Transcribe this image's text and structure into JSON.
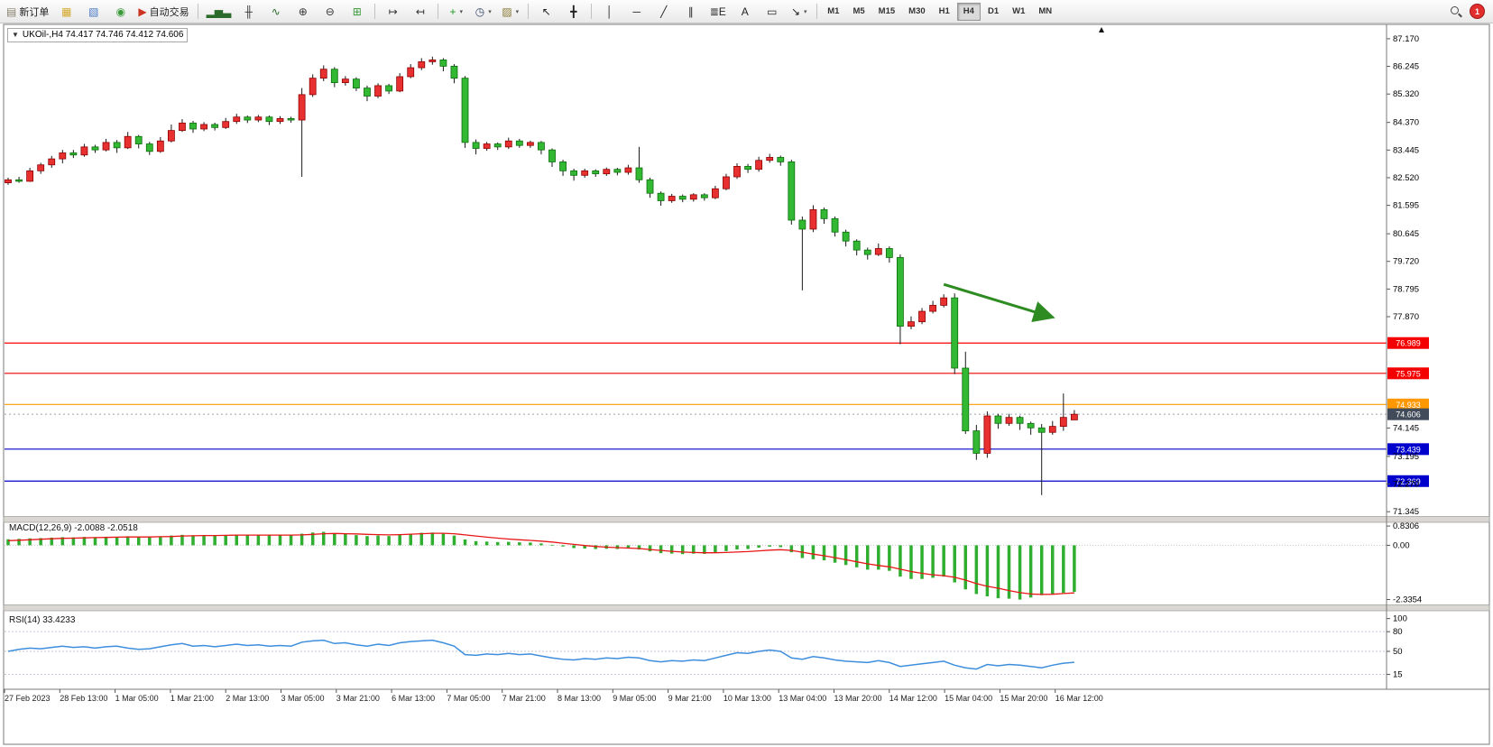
{
  "toolbar": {
    "buttons": [
      {
        "name": "new-order-button",
        "icon_name": "new-order-icon",
        "icon": "▤",
        "color": "#8a8270",
        "label": "新订单"
      },
      {
        "name": "profiles-button",
        "icon_name": "profiles-icon",
        "icon": "▦",
        "color": "#d4a92e"
      },
      {
        "name": "charts-button",
        "icon_name": "charts-icon",
        "icon": "▧",
        "color": "#4878c8"
      },
      {
        "name": "refresh-button",
        "icon_name": "refresh-icon",
        "icon": "◉",
        "color": "#3a9a3a"
      },
      {
        "name": "auto-trading-button",
        "icon_name": "auto-trading-icon",
        "icon": "▶",
        "color": "#cc3322",
        "label": "自动交易"
      },
      {
        "sep": true
      },
      {
        "name": "bar-chart-button",
        "icon_name": "bar-chart-icon",
        "icon": "▂▅▃",
        "color": "#2a6a2a"
      },
      {
        "name": "candlestick-button",
        "icon_name": "candlestick-icon",
        "icon": "╫",
        "color": "#333333"
      },
      {
        "name": "line-chart-button",
        "icon_name": "line-chart-icon",
        "icon": "∿",
        "color": "#2a6a2a"
      },
      {
        "name": "zoom-in-button",
        "icon_name": "zoom-in-icon",
        "icon": "⊕",
        "color": "#333333"
      },
      {
        "name": "zoom-out-button",
        "icon_name": "zoom-out-icon",
        "icon": "⊖",
        "color": "#333333"
      },
      {
        "name": "tile-windows-button",
        "icon_name": "tile-windows-icon",
        "icon": "⊞",
        "color": "#3a9a3a"
      },
      {
        "sep": true
      },
      {
        "name": "auto-scroll-button",
        "icon_name": "auto-scroll-icon",
        "icon": "↦",
        "color": "#333333"
      },
      {
        "name": "chart-shift-button",
        "icon_name": "chart-shift-icon",
        "icon": "↤",
        "color": "#333333"
      },
      {
        "sep": true
      },
      {
        "name": "indicators-button",
        "icon_name": "indicators-icon",
        "icon": "+",
        "color": "#1f9a1f",
        "chevron": true
      },
      {
        "name": "periods-button",
        "icon_name": "periods-icon",
        "icon": "◷",
        "color": "#334466",
        "chevron": true
      },
      {
        "name": "templates-button",
        "icon_name": "templates-icon",
        "icon": "▨",
        "color": "#887733",
        "chevron": true
      },
      {
        "sep": true
      },
      {
        "name": "cursor-button",
        "icon_name": "cursor-icon",
        "icon": "↖",
        "color": "#222222"
      },
      {
        "name": "crosshair-button",
        "icon_name": "crosshair-icon",
        "icon": "╋",
        "color": "#222222"
      },
      {
        "sep": true
      },
      {
        "name": "vertical-line-button",
        "icon_name": "vertical-line-icon",
        "icon": "│",
        "color": "#222222"
      },
      {
        "name": "horizontal-line-button",
        "icon_name": "horizontal-line-icon",
        "icon": "─",
        "color": "#222222"
      },
      {
        "name": "trendline-button",
        "icon_name": "trendline-icon",
        "icon": "╱",
        "color": "#222222"
      },
      {
        "name": "channel-button",
        "icon_name": "channel-icon",
        "icon": "∥",
        "color": "#222222"
      },
      {
        "name": "fibonacci-button",
        "icon_name": "fibonacci-icon",
        "icon": "≣E",
        "color": "#222222"
      },
      {
        "name": "text-button",
        "icon_name": "text-icon",
        "icon": "A",
        "color": "#222222"
      },
      {
        "name": "label-button",
        "icon_name": "label-icon",
        "icon": "▭",
        "color": "#222222"
      },
      {
        "name": "shapes-button",
        "icon_name": "arrows-icon",
        "icon": "↘",
        "color": "#222222",
        "chevron": true
      },
      {
        "sep": true
      }
    ],
    "timeframes": [
      "M1",
      "M5",
      "M15",
      "M30",
      "H1",
      "H4",
      "D1",
      "W1",
      "MN"
    ],
    "active_timeframe": "H4",
    "notification_count": "1",
    "collapse_icon": "▼"
  },
  "chart": {
    "symbol_info": "UKOil-,H4 74.417 74.746 74.412 74.606",
    "price_axis_ticks": [
      "87.170",
      "86.245",
      "85.320",
      "84.370",
      "83.445",
      "82.520",
      "81.595",
      "80.645",
      "79.720",
      "78.795",
      "77.870",
      "74.145",
      "73.195",
      "72.270",
      "71.345"
    ],
    "levels": [
      {
        "label": "76.989",
        "value": 76.989,
        "color": "#f40000"
      },
      {
        "label": "75.975",
        "value": 75.975,
        "color": "#f40000"
      },
      {
        "label": "74.933",
        "value": 74.933,
        "color": "#ff9800"
      },
      {
        "label": "73.439",
        "value": 73.439,
        "color": "#0000cc"
      },
      {
        "label": "72.369",
        "value": 72.369,
        "color": "#0000cc"
      }
    ],
    "current_price": {
      "label": "74.606",
      "value": 74.606,
      "color": "#414b59"
    },
    "trend_arrow": {
      "from_bar": 86,
      "from_price": 78.95,
      "to_bar": 96,
      "to_price": 77.85,
      "color": "#2e8b22",
      "width": 3
    }
  },
  "chart_data": {
    "type": "candlestick",
    "symbol": "UKOil-",
    "timeframe": "H4",
    "price_range": [
      71.2,
      87.56
    ],
    "up_color_convention": "red-up-green-down",
    "x_labels": [
      "27 Feb 2023",
      "28 Feb 13:00",
      "1 Mar 05:00",
      "1 Mar 21:00",
      "2 Mar 13:00",
      "3 Mar 05:00",
      "3 Mar 21:00",
      "6 Mar 13:00",
      "7 Mar 05:00",
      "7 Mar 21:00",
      "8 Mar 13:00",
      "9 Mar 05:00",
      "9 Mar 21:00",
      "10 Mar 13:00",
      "13 Mar 04:00",
      "13 Mar 20:00",
      "14 Mar 12:00",
      "15 Mar 04:00",
      "15 Mar 20:00",
      "16 Mar 12:00"
    ],
    "candles": [
      [
        82.35,
        82.52,
        82.28,
        82.45
      ],
      [
        82.45,
        82.55,
        82.35,
        82.4
      ],
      [
        82.4,
        82.85,
        82.38,
        82.75
      ],
      [
        82.75,
        83.02,
        82.65,
        82.95
      ],
      [
        82.95,
        83.25,
        82.85,
        83.15
      ],
      [
        83.15,
        83.45,
        83.0,
        83.35
      ],
      [
        83.35,
        83.45,
        83.18,
        83.28
      ],
      [
        83.28,
        83.65,
        83.22,
        83.55
      ],
      [
        83.55,
        83.62,
        83.35,
        83.45
      ],
      [
        83.45,
        83.82,
        83.4,
        83.7
      ],
      [
        83.7,
        83.78,
        83.35,
        83.52
      ],
      [
        83.52,
        84.05,
        83.48,
        83.9
      ],
      [
        83.9,
        83.95,
        83.5,
        83.65
      ],
      [
        83.65,
        83.72,
        83.28,
        83.4
      ],
      [
        83.4,
        83.88,
        83.35,
        83.75
      ],
      [
        83.75,
        84.3,
        83.7,
        84.1
      ],
      [
        84.1,
        84.48,
        84.05,
        84.35
      ],
      [
        84.35,
        84.42,
        84.02,
        84.15
      ],
      [
        84.15,
        84.38,
        84.08,
        84.3
      ],
      [
        84.3,
        84.36,
        84.1,
        84.2
      ],
      [
        84.2,
        84.52,
        84.15,
        84.4
      ],
      [
        84.4,
        84.66,
        84.32,
        84.55
      ],
      [
        84.55,
        84.6,
        84.35,
        84.45
      ],
      [
        84.45,
        84.62,
        84.38,
        84.55
      ],
      [
        84.55,
        84.6,
        84.28,
        84.4
      ],
      [
        84.4,
        84.58,
        84.32,
        84.5
      ],
      [
        84.5,
        84.56,
        84.36,
        84.45
      ],
      [
        84.45,
        85.52,
        82.55,
        85.3
      ],
      [
        85.3,
        85.98,
        85.22,
        85.85
      ],
      [
        85.85,
        86.28,
        85.75,
        86.15
      ],
      [
        86.15,
        86.22,
        85.55,
        85.7
      ],
      [
        85.7,
        85.92,
        85.6,
        85.82
      ],
      [
        85.82,
        85.88,
        85.42,
        85.52
      ],
      [
        85.52,
        85.6,
        85.08,
        85.25
      ],
      [
        85.25,
        85.68,
        85.18,
        85.6
      ],
      [
        85.6,
        85.66,
        85.32,
        85.42
      ],
      [
        85.42,
        86.02,
        85.38,
        85.9
      ],
      [
        85.9,
        86.32,
        85.85,
        86.2
      ],
      [
        86.2,
        86.52,
        86.12,
        86.4
      ],
      [
        86.4,
        86.57,
        86.3,
        86.46
      ],
      [
        86.46,
        86.52,
        86.08,
        86.25
      ],
      [
        86.25,
        86.32,
        85.68,
        85.85
      ],
      [
        85.85,
        85.92,
        83.52,
        83.7
      ],
      [
        83.7,
        83.8,
        83.3,
        83.5
      ],
      [
        83.5,
        83.72,
        83.42,
        83.65
      ],
      [
        83.65,
        83.7,
        83.45,
        83.55
      ],
      [
        83.55,
        83.86,
        83.48,
        83.75
      ],
      [
        83.75,
        83.82,
        83.52,
        83.6
      ],
      [
        83.6,
        83.76,
        83.52,
        83.7
      ],
      [
        83.7,
        83.75,
        83.3,
        83.45
      ],
      [
        83.45,
        83.5,
        82.88,
        83.05
      ],
      [
        83.05,
        83.12,
        82.58,
        82.75
      ],
      [
        82.75,
        82.82,
        82.42,
        82.6
      ],
      [
        82.6,
        82.82,
        82.52,
        82.75
      ],
      [
        82.75,
        82.8,
        82.55,
        82.65
      ],
      [
        82.65,
        82.86,
        82.58,
        82.8
      ],
      [
        82.8,
        82.85,
        82.6,
        82.7
      ],
      [
        82.7,
        82.95,
        82.62,
        82.85
      ],
      [
        82.85,
        83.55,
        82.35,
        82.45
      ],
      [
        82.45,
        82.52,
        81.85,
        82.0
      ],
      [
        82.0,
        82.06,
        81.58,
        81.75
      ],
      [
        81.75,
        81.98,
        81.68,
        81.9
      ],
      [
        81.9,
        81.96,
        81.7,
        81.8
      ],
      [
        81.8,
        82.0,
        81.72,
        81.95
      ],
      [
        81.95,
        82.0,
        81.75,
        81.85
      ],
      [
        81.85,
        82.25,
        81.8,
        82.15
      ],
      [
        82.15,
        82.65,
        82.1,
        82.55
      ],
      [
        82.55,
        83.0,
        82.48,
        82.9
      ],
      [
        82.9,
        82.98,
        82.68,
        82.8
      ],
      [
        82.8,
        83.22,
        82.72,
        83.1
      ],
      [
        83.1,
        83.32,
        83.02,
        83.2
      ],
      [
        83.2,
        83.26,
        82.92,
        83.05
      ],
      [
        83.05,
        83.12,
        80.95,
        81.1
      ],
      [
        81.1,
        81.22,
        78.75,
        80.8
      ],
      [
        80.8,
        81.6,
        80.7,
        81.45
      ],
      [
        81.45,
        81.52,
        80.98,
        81.15
      ],
      [
        81.15,
        81.22,
        80.55,
        80.7
      ],
      [
        80.7,
        80.78,
        80.22,
        80.4
      ],
      [
        80.4,
        80.46,
        79.92,
        80.1
      ],
      [
        80.1,
        80.18,
        79.78,
        79.95
      ],
      [
        79.95,
        80.32,
        79.9,
        80.15
      ],
      [
        80.15,
        80.22,
        79.68,
        79.85
      ],
      [
        79.85,
        79.95,
        76.95,
        77.55
      ],
      [
        77.55,
        77.88,
        77.45,
        77.7
      ],
      [
        77.7,
        78.16,
        77.62,
        78.05
      ],
      [
        78.05,
        78.4,
        77.98,
        78.25
      ],
      [
        78.25,
        78.62,
        78.18,
        78.5
      ],
      [
        78.5,
        78.65,
        75.95,
        76.15
      ],
      [
        76.15,
        76.7,
        73.95,
        74.05
      ],
      [
        74.05,
        74.25,
        73.08,
        73.3
      ],
      [
        73.3,
        74.7,
        73.15,
        74.55
      ],
      [
        74.55,
        74.62,
        74.12,
        74.3
      ],
      [
        74.3,
        74.62,
        74.22,
        74.5
      ],
      [
        74.5,
        74.56,
        74.08,
        74.3
      ],
      [
        74.3,
        74.36,
        73.92,
        74.15
      ],
      [
        74.15,
        74.28,
        71.9,
        74.0
      ],
      [
        74.0,
        74.38,
        73.92,
        74.2
      ],
      [
        74.2,
        75.3,
        74.05,
        74.5
      ],
      [
        74.417,
        74.746,
        74.412,
        74.606
      ]
    ]
  },
  "macd": {
    "label": "MACD(12,26,9) -2.0088 -2.0518",
    "axis_ticks": [
      {
        "label": "0.8306",
        "value": 0.8306
      },
      {
        "label": "0.00",
        "value": 0
      },
      {
        "label": "-2.3354",
        "value": -2.3354
      }
    ],
    "range": [
      -2.55,
      0.95
    ],
    "colors": {
      "histogram": "#2fae2f",
      "signal": "#e81717"
    },
    "histogram": [
      0.26,
      0.28,
      0.3,
      0.31,
      0.33,
      0.35,
      0.34,
      0.36,
      0.35,
      0.37,
      0.36,
      0.39,
      0.37,
      0.35,
      0.38,
      0.42,
      0.45,
      0.43,
      0.44,
      0.42,
      0.44,
      0.46,
      0.44,
      0.45,
      0.43,
      0.44,
      0.43,
      0.5,
      0.55,
      0.58,
      0.52,
      0.48,
      0.44,
      0.4,
      0.42,
      0.4,
      0.45,
      0.5,
      0.54,
      0.55,
      0.5,
      0.42,
      0.25,
      0.18,
      0.16,
      0.14,
      0.15,
      0.13,
      0.12,
      0.08,
      0.02,
      -0.05,
      -0.12,
      -0.14,
      -0.16,
      -0.15,
      -0.16,
      -0.14,
      -0.18,
      -0.26,
      -0.34,
      -0.36,
      -0.38,
      -0.36,
      -0.37,
      -0.32,
      -0.25,
      -0.18,
      -0.16,
      -0.1,
      -0.06,
      -0.08,
      -0.3,
      -0.55,
      -0.6,
      -0.65,
      -0.75,
      -0.85,
      -0.95,
      -1.05,
      -1.05,
      -1.1,
      -1.35,
      -1.45,
      -1.45,
      -1.4,
      -1.35,
      -1.6,
      -1.9,
      -2.1,
      -2.2,
      -2.28,
      -2.3,
      -2.34,
      -2.25,
      -2.15,
      -2.1,
      -2.05,
      -2.0088
    ],
    "signal": [
      0.2,
      0.22,
      0.24,
      0.26,
      0.28,
      0.3,
      0.31,
      0.32,
      0.33,
      0.34,
      0.35,
      0.36,
      0.36,
      0.36,
      0.37,
      0.38,
      0.4,
      0.41,
      0.42,
      0.42,
      0.43,
      0.44,
      0.44,
      0.44,
      0.44,
      0.44,
      0.44,
      0.45,
      0.47,
      0.5,
      0.51,
      0.5,
      0.49,
      0.47,
      0.46,
      0.45,
      0.46,
      0.48,
      0.5,
      0.52,
      0.52,
      0.5,
      0.45,
      0.4,
      0.35,
      0.31,
      0.27,
      0.24,
      0.21,
      0.18,
      0.14,
      0.09,
      0.04,
      -0.01,
      -0.05,
      -0.08,
      -0.1,
      -0.12,
      -0.14,
      -0.18,
      -0.22,
      -0.26,
      -0.29,
      -0.31,
      -0.32,
      -0.32,
      -0.31,
      -0.29,
      -0.27,
      -0.24,
      -0.21,
      -0.19,
      -0.22,
      -0.3,
      -0.38,
      -0.45,
      -0.53,
      -0.62,
      -0.71,
      -0.8,
      -0.87,
      -0.93,
      -1.03,
      -1.13,
      -1.21,
      -1.27,
      -1.31,
      -1.38,
      -1.5,
      -1.65,
      -1.77,
      -1.85,
      -1.95,
      -2.04,
      -2.1,
      -2.12,
      -2.11,
      -2.08,
      -2.0518
    ]
  },
  "rsi": {
    "label": "RSI(14) 33.4233",
    "axis_ticks": [
      {
        "label": "100",
        "value": 100
      },
      {
        "label": "80",
        "value": 80
      },
      {
        "label": "50",
        "value": 50
      },
      {
        "label": "15",
        "value": 15
      }
    ],
    "range": [
      -5,
      105
    ],
    "color": "#3e8ede",
    "values": [
      50,
      53,
      55,
      54,
      56,
      58,
      56,
      57,
      55,
      57,
      58,
      55,
      53,
      54,
      57,
      60,
      62,
      58,
      59,
      57,
      59,
      61,
      59,
      60,
      58,
      59,
      58,
      64,
      66,
      67,
      62,
      63,
      60,
      58,
      61,
      59,
      63,
      65,
      66,
      67,
      63,
      58,
      45,
      44,
      46,
      45,
      47,
      45,
      46,
      43,
      40,
      38,
      37,
      39,
      38,
      40,
      39,
      41,
      40,
      36,
      34,
      36,
      35,
      37,
      36,
      40,
      44,
      48,
      47,
      50,
      52,
      50,
      40,
      38,
      42,
      40,
      37,
      35,
      34,
      33,
      36,
      33,
      27,
      29,
      31,
      33,
      35,
      29,
      25,
      23,
      30,
      28,
      30,
      29,
      27,
      25,
      29,
      32,
      33.4233
    ]
  },
  "colors": {
    "bull": "#e93030",
    "bull_border": "#8e0000",
    "bear": "#33b833",
    "bear_border": "#0b6e0b",
    "wick": "#1a1a1a"
  }
}
